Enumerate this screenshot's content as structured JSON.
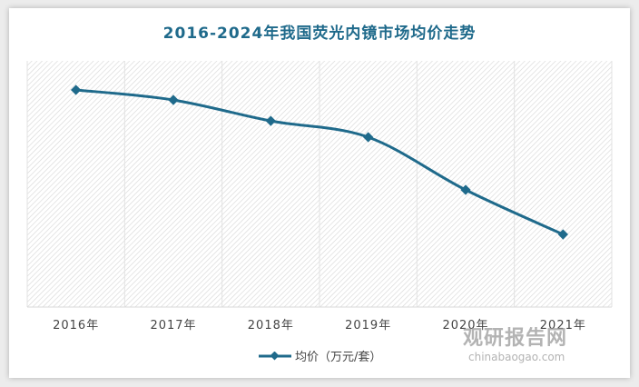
{
  "chart_data": {
    "type": "line",
    "title": "2016-2024年我国荧光内镜市场均价走势",
    "categories": [
      "2016年",
      "2017年",
      "2018年",
      "2019年",
      "2020年",
      "2021年"
    ],
    "series": [
      {
        "name": "均价（万元/套）",
        "values": [
          88.2,
          84.1,
          75.6,
          69.0,
          47.6,
          29.5
        ],
        "color": "#1f6a8b"
      }
    ],
    "ylim": [
      0,
      100
    ],
    "xlabel": "",
    "ylabel": "",
    "legend": "bottom",
    "grid": true
  },
  "watermark": {
    "cn": "观研报告网",
    "en": "chinabaogao.com"
  }
}
